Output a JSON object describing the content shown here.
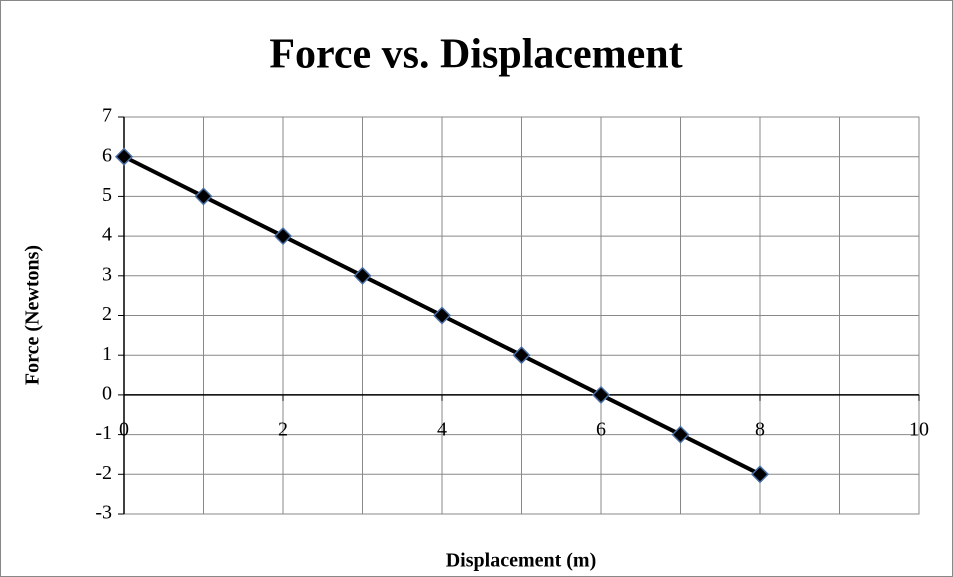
{
  "chart_data": {
    "type": "scatter",
    "title": "Force vs. Displacement",
    "x_label": "Displacement (m)",
    "y_label": "Force (Newtons)",
    "series": [
      {
        "name": "Force",
        "color": "#000000",
        "marker_edge": "#4a6fa5",
        "x": [
          0,
          1,
          2,
          3,
          4,
          5,
          6,
          7,
          8
        ],
        "values": [
          6,
          5,
          4,
          3,
          2,
          1,
          0,
          -1,
          -2
        ]
      }
    ],
    "xlim": [
      0,
      10
    ],
    "xticks": [
      0,
      2,
      4,
      6,
      8,
      10
    ],
    "x_minor_ticks": [
      1,
      3,
      5,
      7,
      9
    ],
    "ylim": [
      -3,
      7
    ],
    "yticks": [
      -3,
      -2,
      -1,
      0,
      1,
      2,
      3,
      4,
      5,
      6,
      7
    ],
    "grid": true,
    "connect": true
  }
}
